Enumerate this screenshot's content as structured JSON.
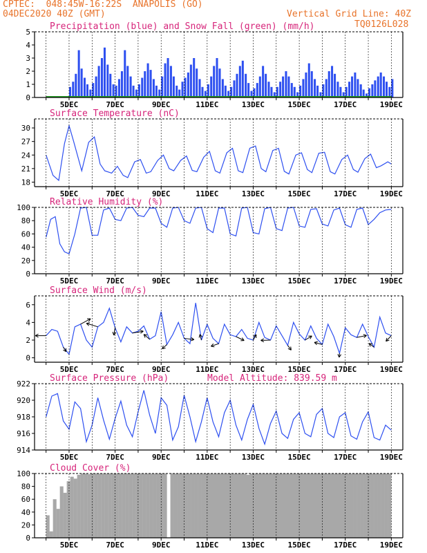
{
  "header": {
    "source": "CPTEC:",
    "location": "048:45W-16:22S  ANAPOLIS (GO)",
    "init_time": "04DEC2020 40Z (GMT)",
    "grid_note": "Vertical Grid Line: 40Z",
    "run_code": "TQ0126L028"
  },
  "colors": {
    "header": "#e8732a",
    "title": "#d6247a",
    "series_blue": "#2d4ff0",
    "snow_green": "#22a022",
    "cloud_gray": "#a8a8a8",
    "axis": "#000000",
    "grid": "#000000"
  },
  "x_axis_labels": [
    "5DEC",
    "7DEC",
    "9DEC",
    "11DEC",
    "13DEC",
    "15DEC",
    "17DEC",
    "19DEC"
  ],
  "chart_data": [
    {
      "id": "precip",
      "type": "bar",
      "title": "Precipitation (blue) and Snow Fall (green) (mm/h)",
      "x_unit": "days since 04DEC 00Z",
      "ylim": [
        0,
        5
      ],
      "yticks": [
        0,
        1,
        2,
        3,
        4,
        5
      ],
      "grid": "vertical dashed at 00Z each day",
      "series": [
        {
          "name": "Precipitation",
          "color": "#2d4ff0",
          "x": [
            1.0,
            1.13,
            1.25,
            1.38,
            1.5,
            1.63,
            1.75,
            1.88,
            2.0,
            2.13,
            2.25,
            2.38,
            2.5,
            2.63,
            2.75,
            2.88,
            3.0,
            3.13,
            3.25,
            3.38,
            3.5,
            3.63,
            3.75,
            3.88,
            4.0,
            4.13,
            4.25,
            4.38,
            4.5,
            4.63,
            4.75,
            4.88,
            5.0,
            5.13,
            5.25,
            5.38,
            5.5,
            5.63,
            5.75,
            5.88,
            6.0,
            6.13,
            6.25,
            6.38,
            6.5,
            6.63,
            6.75,
            6.88,
            7.0,
            7.13,
            7.25,
            7.38,
            7.5,
            7.63,
            7.75,
            7.88,
            8.0,
            8.13,
            8.25,
            8.38,
            8.5,
            8.63,
            8.75,
            8.88,
            9.0,
            9.13,
            9.25,
            9.38,
            9.5,
            9.63,
            9.75,
            9.88,
            10.0,
            10.13,
            10.25,
            10.38,
            10.5,
            10.63,
            10.75,
            10.88,
            11.0,
            11.13,
            11.25,
            11.38,
            11.5,
            11.63,
            11.75,
            11.88,
            12.0,
            12.13,
            12.25,
            12.38,
            12.5,
            12.63,
            12.75,
            12.88,
            13.0,
            13.13,
            13.25,
            13.38,
            13.5,
            13.63,
            13.75,
            13.88,
            14.0,
            14.13,
            14.25,
            14.38,
            14.5,
            14.63,
            14.75,
            14.88,
            15.0
          ],
          "values": [
            0.8,
            1.2,
            1.8,
            3.6,
            2.2,
            1.5,
            1.0,
            0.6,
            1.1,
            1.6,
            2.4,
            3.0,
            3.8,
            2.5,
            1.8,
            1.0,
            0.9,
            1.4,
            2.0,
            3.6,
            2.4,
            1.6,
            0.9,
            0.6,
            1.0,
            1.5,
            2.0,
            2.6,
            2.1,
            1.4,
            0.9,
            0.6,
            1.6,
            2.6,
            3.0,
            2.4,
            1.6,
            0.9,
            0.6,
            1.2,
            1.5,
            1.9,
            2.5,
            3.0,
            2.2,
            1.4,
            0.8,
            0.5,
            1.0,
            1.6,
            2.4,
            3.0,
            2.2,
            1.4,
            0.9,
            0.5,
            0.8,
            1.3,
            1.8,
            2.4,
            2.8,
            1.8,
            1.1,
            0.5,
            0.7,
            1.1,
            1.6,
            2.4,
            1.8,
            1.2,
            0.8,
            0.4,
            0.8,
            1.2,
            1.6,
            2.0,
            1.6,
            1.1,
            0.8,
            0.4,
            0.9,
            1.4,
            1.9,
            2.6,
            2.0,
            1.4,
            0.9,
            0.4,
            1.0,
            1.4,
            2.0,
            2.4,
            1.8,
            1.2,
            0.8,
            0.4,
            0.8,
            1.2,
            1.6,
            1.9,
            1.4,
            1.0,
            0.6,
            0.3,
            0.7,
            1.0,
            1.3,
            1.6,
            1.9,
            1.6,
            1.2,
            0.8,
            1.4
          ]
        },
        {
          "name": "Snow Fall",
          "color": "#22a022",
          "x": [
            0,
            15
          ],
          "values": [
            0,
            0
          ]
        }
      ]
    },
    {
      "id": "temp",
      "type": "line",
      "title": "Surface Temperature (nC)",
      "x_unit": "days since 04DEC 00Z",
      "ylim": [
        17,
        32
      ],
      "yticks": [
        18,
        21,
        24,
        27,
        30
      ],
      "grid": "vertical dashed at 00Z each day",
      "series": [
        {
          "name": "Surface Temperature",
          "color": "#2d4ff0",
          "x": [
            0.0,
            0.3,
            0.55,
            0.8,
            1.0,
            1.2,
            1.55,
            1.85,
            2.1,
            2.35,
            2.55,
            2.85,
            3.1,
            3.35,
            3.55,
            3.85,
            4.1,
            4.35,
            4.55,
            4.85,
            5.1,
            5.35,
            5.55,
            5.85,
            6.1,
            6.35,
            6.55,
            6.85,
            7.1,
            7.35,
            7.55,
            7.85,
            8.1,
            8.35,
            8.55,
            8.85,
            9.1,
            9.35,
            9.55,
            9.85,
            10.1,
            10.35,
            10.55,
            10.85,
            11.1,
            11.35,
            11.55,
            11.85,
            12.1,
            12.35,
            12.55,
            12.85,
            13.1,
            13.35,
            13.55,
            13.85,
            14.1,
            14.35,
            14.55,
            14.85,
            15.0
          ],
          "values": [
            24.0,
            19.5,
            18.4,
            26.5,
            30.5,
            27.0,
            20.5,
            26.8,
            28.0,
            22.0,
            20.5,
            20.0,
            21.5,
            19.5,
            19.0,
            22.5,
            23.0,
            20.0,
            20.3,
            22.8,
            24.0,
            21.0,
            20.5,
            22.8,
            23.8,
            20.6,
            20.3,
            23.5,
            24.8,
            20.5,
            20.0,
            24.5,
            25.5,
            20.5,
            20.1,
            25.5,
            26.0,
            21.0,
            20.3,
            25.0,
            25.5,
            20.4,
            19.8,
            24.0,
            24.5,
            20.8,
            20.1,
            24.4,
            24.6,
            20.3,
            19.8,
            23.0,
            24.0,
            20.8,
            20.2,
            23.2,
            24.2,
            21.2,
            21.6,
            22.5,
            22.0
          ]
        }
      ]
    },
    {
      "id": "rh",
      "type": "line",
      "title": "Relative Humidity (%)",
      "x_unit": "days since 04DEC 00Z",
      "ylim": [
        0,
        100
      ],
      "yticks": [
        0,
        20,
        40,
        60,
        80,
        100
      ],
      "grid": "vertical dashed at 00Z each day",
      "series": [
        {
          "name": "Relative Humidity",
          "color": "#2d4ff0",
          "x": [
            0.0,
            0.2,
            0.4,
            0.6,
            0.8,
            1.0,
            1.25,
            1.5,
            1.75,
            2.0,
            2.25,
            2.5,
            2.75,
            3.0,
            3.25,
            3.5,
            3.75,
            4.0,
            4.25,
            4.5,
            4.75,
            5.0,
            5.25,
            5.5,
            5.75,
            6.0,
            6.25,
            6.5,
            6.75,
            7.0,
            7.25,
            7.5,
            7.75,
            8.0,
            8.25,
            8.5,
            8.75,
            9.0,
            9.25,
            9.5,
            9.75,
            10.0,
            10.25,
            10.5,
            10.75,
            11.0,
            11.25,
            11.5,
            11.75,
            12.0,
            12.25,
            12.5,
            12.75,
            13.0,
            13.25,
            13.5,
            13.75,
            14.0,
            14.25,
            14.5,
            14.75,
            15.0
          ],
          "values": [
            55,
            82,
            86,
            45,
            33,
            30,
            60,
            99,
            100,
            58,
            58,
            96,
            99,
            82,
            80,
            99,
            100,
            88,
            86,
            99,
            99,
            76,
            70,
            99,
            100,
            80,
            76,
            99,
            100,
            68,
            62,
            99,
            99,
            60,
            57,
            99,
            100,
            62,
            60,
            98,
            100,
            68,
            65,
            99,
            100,
            72,
            70,
            97,
            98,
            75,
            72,
            96,
            99,
            74,
            70,
            97,
            99,
            74,
            82,
            92,
            96,
            97
          ]
        }
      ]
    },
    {
      "id": "wind",
      "type": "line",
      "title": "Surface Wind (m/s)",
      "x_unit": "days since 04DEC 00Z",
      "ylim": [
        -0.5,
        7
      ],
      "yticks": [
        0,
        2,
        4,
        6
      ],
      "grid": "vertical dashed at 00Z each day",
      "series": [
        {
          "name": "Surface Wind",
          "color": "#2d4ff0",
          "x": [
            0.0,
            0.25,
            0.5,
            0.75,
            1.0,
            1.25,
            1.5,
            1.75,
            2.0,
            2.25,
            2.5,
            2.75,
            3.0,
            3.25,
            3.5,
            3.75,
            4.0,
            4.25,
            4.5,
            4.75,
            5.0,
            5.25,
            5.5,
            5.75,
            6.0,
            6.25,
            6.5,
            6.75,
            7.0,
            7.25,
            7.5,
            7.75,
            8.0,
            8.25,
            8.5,
            8.75,
            9.0,
            9.25,
            9.5,
            9.75,
            10.0,
            10.25,
            10.5,
            10.75,
            11.0,
            11.25,
            11.5,
            11.75,
            12.0,
            12.25,
            12.5,
            12.75,
            13.0,
            13.25,
            13.5,
            13.75,
            14.0,
            14.25,
            14.5,
            14.75,
            15.0
          ],
          "values": [
            2.5,
            3.2,
            3.0,
            1.2,
            0.4,
            3.5,
            3.8,
            2.0,
            1.2,
            3.5,
            4.0,
            5.6,
            3.4,
            1.8,
            3.5,
            2.8,
            3.0,
            3.6,
            2.1,
            2.5,
            5.2,
            1.5,
            2.6,
            4.0,
            2.2,
            1.6,
            6.2,
            2.0,
            3.8,
            2.2,
            1.6,
            3.8,
            2.6,
            2.4,
            3.2,
            2.2,
            2.0,
            4.0,
            2.3,
            2.0,
            3.6,
            2.5,
            1.4,
            4.0,
            2.7,
            2.0,
            3.6,
            2.2,
            1.5,
            3.8,
            2.4,
            0.5,
            3.4,
            2.6,
            2.3,
            3.8,
            2.4,
            1.2,
            4.6,
            2.8,
            2.5
          ]
        }
      ]
    },
    {
      "id": "pres",
      "type": "line",
      "title": "Surface Pressure (hPa)",
      "annotation": "Model Altitude: 839.59 m",
      "x_unit": "days since 04DEC 00Z",
      "ylim": [
        914,
        922
      ],
      "yticks": [
        914,
        916,
        918,
        920,
        922
      ],
      "grid": "vertical dashed at 00Z each day",
      "series": [
        {
          "name": "Surface Pressure",
          "color": "#2d4ff0",
          "x": [
            0.0,
            0.25,
            0.5,
            0.75,
            1.0,
            1.25,
            1.5,
            1.75,
            2.0,
            2.25,
            2.5,
            2.75,
            3.0,
            3.25,
            3.5,
            3.75,
            4.0,
            4.25,
            4.5,
            4.75,
            5.0,
            5.25,
            5.5,
            5.75,
            6.0,
            6.25,
            6.5,
            6.75,
            7.0,
            7.25,
            7.5,
            7.75,
            8.0,
            8.25,
            8.5,
            8.75,
            9.0,
            9.25,
            9.5,
            9.75,
            10.0,
            10.25,
            10.5,
            10.75,
            11.0,
            11.25,
            11.5,
            11.75,
            12.0,
            12.25,
            12.5,
            12.75,
            13.0,
            13.25,
            13.5,
            13.75,
            14.0,
            14.25,
            14.5,
            14.75,
            15.0
          ],
          "values": [
            918.0,
            920.5,
            920.8,
            917.5,
            916.5,
            919.8,
            919.0,
            915.0,
            917.0,
            920.3,
            917.6,
            915.3,
            917.8,
            919.9,
            917.0,
            915.6,
            918.6,
            921.2,
            918.2,
            916.0,
            920.3,
            919.4,
            915.2,
            916.8,
            920.6,
            918.0,
            915.0,
            917.4,
            920.3,
            917.4,
            915.6,
            918.5,
            920.0,
            917.0,
            915.2,
            917.7,
            919.5,
            916.6,
            914.7,
            917.2,
            918.7,
            916.0,
            915.4,
            917.7,
            918.5,
            916.0,
            915.6,
            918.3,
            919.0,
            916.0,
            915.5,
            918.0,
            918.5,
            915.7,
            915.3,
            917.4,
            918.6,
            915.5,
            915.2,
            917.0,
            916.4
          ]
        }
      ]
    },
    {
      "id": "cloud",
      "type": "bar",
      "title": "Cloud Cover (%)",
      "x_unit": "days since 04DEC 00Z",
      "ylim": [
        0,
        100
      ],
      "yticks": [
        0,
        20,
        40,
        60,
        80,
        100
      ],
      "grid": "vertical dashed at 00Z each day",
      "series": [
        {
          "name": "Cloud Cover",
          "color": "#a8a8a8",
          "x": [
            0.0,
            0.15,
            0.3,
            0.45,
            0.6,
            0.75,
            0.9,
            1.05,
            1.2,
            1.35,
            1.5,
            1.65,
            1.8,
            1.95,
            2.1,
            2.25,
            2.4,
            2.55,
            2.7,
            2.85,
            3.0,
            3.15,
            3.3,
            3.45,
            3.6,
            3.75,
            3.9,
            4.05,
            4.2,
            4.35,
            4.5,
            4.65,
            4.8,
            4.95,
            5.1,
            5.25,
            5.4,
            5.55,
            5.7,
            5.85,
            6.0,
            6.15,
            6.3,
            6.45,
            6.6,
            6.75,
            6.9,
            7.05,
            7.2,
            7.35,
            7.5,
            7.65,
            7.8,
            7.95,
            8.1,
            8.25,
            8.4,
            8.55,
            8.7,
            8.85,
            9.0,
            9.15,
            9.3,
            9.45,
            9.6,
            9.75,
            9.9,
            10.05,
            10.2,
            10.35,
            10.5,
            10.65,
            10.8,
            10.95,
            11.1,
            11.25,
            11.4,
            11.55,
            11.7,
            11.85,
            12.0,
            12.15,
            12.3,
            12.45,
            12.6,
            12.75,
            12.9,
            13.05,
            13.2,
            13.35,
            13.5,
            13.65,
            13.8,
            13.95,
            14.1,
            14.25,
            14.4,
            14.55,
            14.7,
            14.85
          ],
          "values": [
            35,
            10,
            60,
            45,
            80,
            70,
            88,
            95,
            92,
            98,
            100,
            100,
            99,
            100,
            100,
            100,
            100,
            100,
            100,
            100,
            100,
            100,
            100,
            100,
            100,
            100,
            100,
            100,
            100,
            100,
            100,
            100,
            100,
            100,
            100,
            0,
            100,
            100,
            100,
            100,
            100,
            100,
            100,
            100,
            100,
            100,
            100,
            100,
            100,
            100,
            100,
            100,
            100,
            100,
            100,
            100,
            100,
            100,
            98,
            100,
            100,
            100,
            100,
            100,
            100,
            100,
            100,
            100,
            100,
            100,
            100,
            100,
            100,
            100,
            100,
            100,
            100,
            100,
            100,
            100,
            100,
            100,
            100,
            100,
            100,
            100,
            100,
            100,
            100,
            100,
            100,
            100,
            100,
            100,
            100,
            100,
            100,
            100,
            100,
            100
          ]
        }
      ]
    }
  ]
}
